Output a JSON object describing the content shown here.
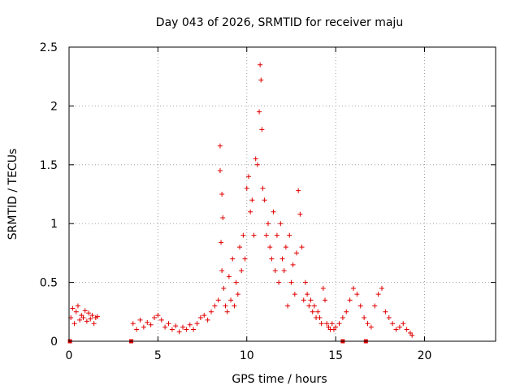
{
  "chart_data": {
    "type": "scatter",
    "title": "Day 043 of 2026, SRMTID for receiver maju",
    "xlabel": "GPS time / hours",
    "ylabel": "SRMTID / TECUs",
    "xlim": [
      0,
      24
    ],
    "ylim": [
      0,
      2.5
    ],
    "xticks": [
      0,
      5,
      10,
      15,
      20
    ],
    "xtick_labels": [
      "0",
      "5",
      "10",
      "15",
      "20"
    ],
    "yticks": [
      0,
      0.5,
      1,
      1.5,
      2,
      2.5
    ],
    "ytick_labels": [
      "0",
      "0.5",
      "1",
      "1.5",
      "2",
      "2.5"
    ],
    "grid": true,
    "marker": "+",
    "color": "#e00000",
    "gap_markers_x": [
      0.05,
      3.5,
      15.4,
      16.7
    ],
    "series": [
      {
        "name": "SRMTID",
        "x": [
          0.1,
          0.2,
          0.3,
          0.4,
          0.5,
          0.6,
          0.7,
          0.8,
          0.9,
          1.0,
          1.1,
          1.2,
          1.3,
          1.4,
          1.5,
          1.6,
          3.6,
          3.8,
          4.0,
          4.2,
          4.4,
          4.6,
          4.8,
          5.0,
          5.2,
          5.4,
          5.6,
          5.8,
          6.0,
          6.2,
          6.4,
          6.6,
          6.8,
          7.0,
          7.2,
          7.4,
          7.6,
          7.8,
          8.0,
          8.2,
          8.4,
          8.5,
          8.5,
          8.55,
          8.6,
          8.6,
          8.65,
          8.7,
          8.8,
          8.9,
          9.0,
          9.1,
          9.2,
          9.3,
          9.4,
          9.5,
          9.6,
          9.7,
          9.8,
          9.9,
          10.0,
          10.1,
          10.2,
          10.3,
          10.4,
          10.5,
          10.6,
          10.7,
          10.75,
          10.8,
          10.85,
          10.9,
          11.0,
          11.1,
          11.2,
          11.3,
          11.4,
          11.5,
          11.6,
          11.7,
          11.8,
          11.9,
          12.0,
          12.1,
          12.2,
          12.3,
          12.4,
          12.5,
          12.6,
          12.7,
          12.8,
          12.9,
          13.0,
          13.1,
          13.2,
          13.3,
          13.4,
          13.5,
          13.6,
          13.7,
          13.8,
          13.9,
          14.0,
          14.1,
          14.2,
          14.3,
          14.4,
          14.5,
          14.6,
          14.7,
          14.8,
          14.9,
          15.0,
          15.2,
          15.4,
          15.6,
          15.8,
          16.0,
          16.2,
          16.4,
          16.6,
          16.8,
          17.0,
          17.2,
          17.4,
          17.6,
          17.8,
          18.0,
          18.2,
          18.4,
          18.6,
          18.8,
          19.0,
          19.2,
          19.3
        ],
        "y": [
          0.2,
          0.28,
          0.15,
          0.25,
          0.3,
          0.18,
          0.22,
          0.2,
          0.26,
          0.17,
          0.24,
          0.19,
          0.22,
          0.15,
          0.2,
          0.21,
          0.15,
          0.1,
          0.18,
          0.12,
          0.16,
          0.14,
          0.2,
          0.22,
          0.18,
          0.12,
          0.15,
          0.1,
          0.13,
          0.08,
          0.12,
          0.1,
          0.14,
          0.1,
          0.15,
          0.2,
          0.22,
          0.18,
          0.25,
          0.3,
          0.35,
          1.66,
          1.45,
          0.84,
          1.25,
          0.6,
          1.05,
          0.45,
          0.3,
          0.25,
          0.55,
          0.35,
          0.7,
          0.3,
          0.5,
          0.4,
          0.8,
          0.6,
          0.9,
          0.7,
          1.3,
          1.4,
          1.1,
          1.2,
          0.9,
          1.55,
          1.5,
          1.95,
          2.35,
          2.22,
          1.8,
          1.3,
          1.2,
          0.9,
          1.0,
          0.8,
          0.7,
          1.1,
          0.6,
          0.9,
          0.5,
          1.0,
          0.7,
          0.6,
          0.8,
          0.3,
          0.9,
          0.5,
          0.65,
          0.4,
          0.75,
          1.28,
          1.08,
          0.8,
          0.35,
          0.5,
          0.4,
          0.3,
          0.35,
          0.25,
          0.3,
          0.2,
          0.25,
          0.2,
          0.15,
          0.45,
          0.35,
          0.15,
          0.12,
          0.1,
          0.15,
          0.1,
          0.12,
          0.15,
          0.2,
          0.25,
          0.35,
          0.45,
          0.4,
          0.3,
          0.2,
          0.15,
          0.12,
          0.3,
          0.4,
          0.45,
          0.25,
          0.2,
          0.15,
          0.1,
          0.12,
          0.15,
          0.1,
          0.07,
          0.05
        ]
      }
    ]
  }
}
